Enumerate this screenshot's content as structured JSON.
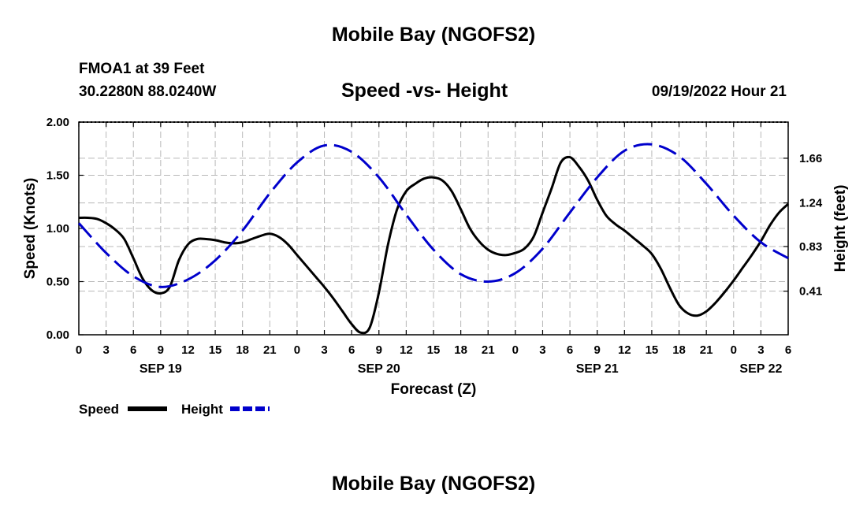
{
  "header": {
    "title": "Mobile Bay (NGOFS2)",
    "station": "FMOA1 at 39 Feet",
    "coordinates": "30.2280N  88.0240W",
    "subtitle": "Speed -vs- Height",
    "datetime": "09/19/2022 Hour 21"
  },
  "footer": {
    "title": "Mobile Bay (NGOFS2)"
  },
  "legend": {
    "items": [
      {
        "label": "Speed",
        "color": "#000000",
        "style": "solid"
      },
      {
        "label": "Height",
        "color": "#0000cc",
        "style": "dashed"
      }
    ]
  },
  "chart_data": {
    "type": "line",
    "title": "Speed -vs- Height",
    "xlabel": "Forecast (Z)",
    "ylabel": "Speed (Knots)",
    "y2label": "Height (feet)",
    "x_unit": "hours since 09/19 00Z",
    "xlim": [
      0,
      78
    ],
    "ylim": [
      0,
      2.0
    ],
    "y2lim": [
      0.0,
      2.0
    ],
    "x_ticks": [
      0,
      3,
      6,
      9,
      12,
      15,
      18,
      21,
      24,
      27,
      30,
      33,
      36,
      39,
      42,
      45,
      48,
      51,
      54,
      57,
      60,
      63,
      66,
      69,
      72,
      75,
      78
    ],
    "x_tick_labels": [
      "0",
      "3",
      "6",
      "9",
      "12",
      "15",
      "18",
      "21",
      "0",
      "3",
      "6",
      "9",
      "12",
      "15",
      "18",
      "21",
      "0",
      "3",
      "6",
      "9",
      "12",
      "15",
      "18",
      "21",
      "0",
      "3",
      "6"
    ],
    "date_labels": [
      {
        "x": 9,
        "label": "SEP 19"
      },
      {
        "x": 33,
        "label": "SEP 20"
      },
      {
        "x": 57,
        "label": "SEP 21"
      },
      {
        "x": 75,
        "label": "SEP 22"
      }
    ],
    "y_ticks": [
      0.0,
      0.5,
      1.0,
      1.5,
      2.0
    ],
    "y_tick_labels": [
      "0.00",
      "0.50",
      "1.00",
      "1.50",
      "2.00"
    ],
    "y2_ticks": [
      0.41,
      0.83,
      1.24,
      1.66
    ],
    "y2_tick_labels": [
      "0.41",
      "0.83",
      "1.24",
      "1.66"
    ],
    "series": [
      {
        "name": "Speed",
        "axis": "left",
        "x": [
          0,
          1,
          2,
          3,
          4,
          5,
          6,
          7,
          8,
          9,
          10,
          11,
          12,
          13,
          14,
          15,
          16,
          17,
          18,
          19,
          20,
          21,
          22,
          23,
          24,
          25,
          26,
          27,
          28,
          29,
          30,
          31,
          32,
          33,
          34,
          35,
          36,
          37,
          38,
          39,
          40,
          41,
          42,
          43,
          44,
          45,
          46,
          47,
          48,
          49,
          50,
          51,
          52,
          53,
          54,
          55,
          56,
          57,
          58,
          59,
          60,
          61,
          62,
          63,
          64,
          65,
          66,
          67,
          68,
          69,
          70,
          71,
          72,
          73,
          74,
          75,
          76,
          77,
          78
        ],
        "values": [
          1.1,
          1.1,
          1.09,
          1.05,
          0.99,
          0.9,
          0.72,
          0.53,
          0.42,
          0.39,
          0.45,
          0.7,
          0.85,
          0.9,
          0.9,
          0.89,
          0.87,
          0.86,
          0.87,
          0.9,
          0.93,
          0.95,
          0.92,
          0.85,
          0.75,
          0.65,
          0.55,
          0.45,
          0.34,
          0.22,
          0.1,
          0.02,
          0.07,
          0.4,
          0.85,
          1.18,
          1.35,
          1.42,
          1.47,
          1.48,
          1.45,
          1.35,
          1.18,
          1.0,
          0.88,
          0.8,
          0.76,
          0.75,
          0.77,
          0.81,
          0.92,
          1.15,
          1.38,
          1.62,
          1.67,
          1.58,
          1.45,
          1.27,
          1.12,
          1.04,
          0.98,
          0.91,
          0.84,
          0.76,
          0.62,
          0.44,
          0.28,
          0.2,
          0.18,
          0.22,
          0.3,
          0.4,
          0.51,
          0.63,
          0.75,
          0.88,
          1.03,
          1.15,
          1.23
        ],
        "color": "#000000"
      },
      {
        "name": "Height",
        "axis": "right",
        "x": [
          0,
          3,
          6,
          9,
          12,
          15,
          18,
          21,
          24,
          27,
          30,
          33,
          36,
          39,
          42,
          45,
          48,
          51,
          54,
          57,
          60,
          63,
          66,
          69,
          72,
          75,
          78
        ],
        "values": [
          1.05,
          0.77,
          0.55,
          0.45,
          0.52,
          0.7,
          0.98,
          1.33,
          1.62,
          1.78,
          1.72,
          1.48,
          1.13,
          0.8,
          0.57,
          0.5,
          0.58,
          0.81,
          1.15,
          1.48,
          1.73,
          1.79,
          1.68,
          1.42,
          1.12,
          0.87,
          0.72
        ],
        "color": "#0000cc"
      }
    ]
  }
}
